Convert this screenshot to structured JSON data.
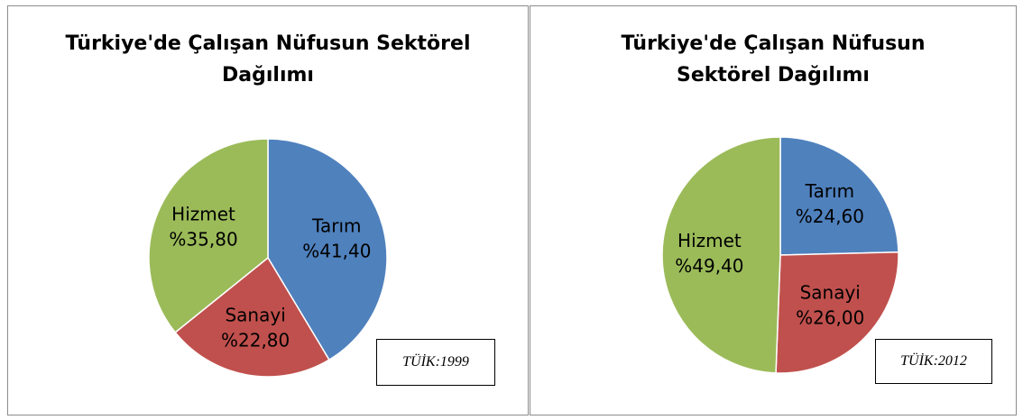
{
  "chart_data": [
    {
      "type": "pie",
      "title": "Türkiye'de Çalışan Nüfusun Sektörel Dağılımı",
      "categories": [
        "Tarım",
        "Sanayi",
        "Hizmet"
      ],
      "values": [
        41.4,
        22.8,
        35.8
      ],
      "value_labels": [
        "%41,40",
        "%22,80",
        "%35,80"
      ],
      "colors": [
        "#4f81bd",
        "#c0504d",
        "#9bbb59"
      ],
      "annotation": "TÜİK:1999"
    },
    {
      "type": "pie",
      "title": "Türkiye'de Çalışan Nüfusun Sektörel Dağılımı",
      "categories": [
        "Tarım",
        "Sanayi",
        "Hizmet"
      ],
      "values": [
        24.6,
        26.0,
        49.4
      ],
      "value_labels": [
        "%24,60",
        "%26,00",
        "%49,40"
      ],
      "colors": [
        "#4f81bd",
        "#c0504d",
        "#9bbb59"
      ],
      "annotation": "TÜİK:2012"
    }
  ]
}
